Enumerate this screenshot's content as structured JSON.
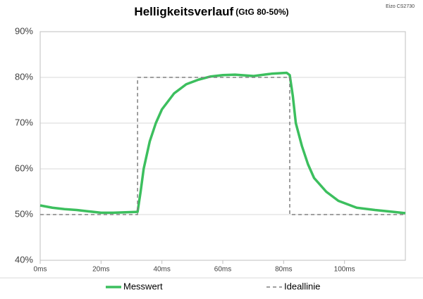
{
  "chart_data": {
    "type": "line",
    "title": "Helligkeitsverlauf",
    "subtitle": "(GtG 80-50%)",
    "annotation": "Eizo CS2730",
    "xlim": [
      0,
      120
    ],
    "xticks": [
      {
        "value": 0,
        "label": "0ms"
      },
      {
        "value": 20,
        "label": "20ms"
      },
      {
        "value": 40,
        "label": "40ms"
      },
      {
        "value": 60,
        "label": "60ms"
      },
      {
        "value": 80,
        "label": "80ms"
      },
      {
        "value": 100,
        "label": "100ms"
      }
    ],
    "ylim": [
      40,
      90
    ],
    "yticks": [
      {
        "value": 40,
        "label": "40%"
      },
      {
        "value": 50,
        "label": "50%"
      },
      {
        "value": 60,
        "label": "60%"
      },
      {
        "value": 70,
        "label": "70%"
      },
      {
        "value": 80,
        "label": "80%"
      },
      {
        "value": 90,
        "label": "90%"
      }
    ],
    "grid": true,
    "legend": "bottom",
    "series": [
      {
        "name": "Messwert",
        "color": "#3cbf5e",
        "line_style": "solid",
        "x": [
          0,
          4,
          8,
          12,
          16,
          20,
          24,
          28,
          32,
          33,
          34,
          36,
          38,
          40,
          44,
          48,
          52,
          56,
          60,
          64,
          70,
          76,
          81,
          82,
          83,
          84,
          86,
          88,
          90,
          94,
          98,
          104,
          110,
          116,
          120
        ],
        "values": [
          52,
          51.5,
          51.2,
          51,
          50.7,
          50.4,
          50.4,
          50.5,
          50.6,
          55,
          60,
          66,
          70,
          73,
          76.5,
          78.5,
          79.5,
          80.2,
          80.5,
          80.6,
          80.3,
          80.8,
          81,
          80.5,
          76,
          70,
          65,
          61,
          58,
          55,
          53,
          51.5,
          51,
          50.6,
          50.3
        ]
      },
      {
        "name": "Ideallinie",
        "color": "#808080",
        "line_style": "dashed",
        "x": [
          0,
          32,
          32,
          82,
          82,
          120
        ],
        "values": [
          50,
          50,
          80,
          80,
          50,
          50
        ]
      }
    ]
  }
}
